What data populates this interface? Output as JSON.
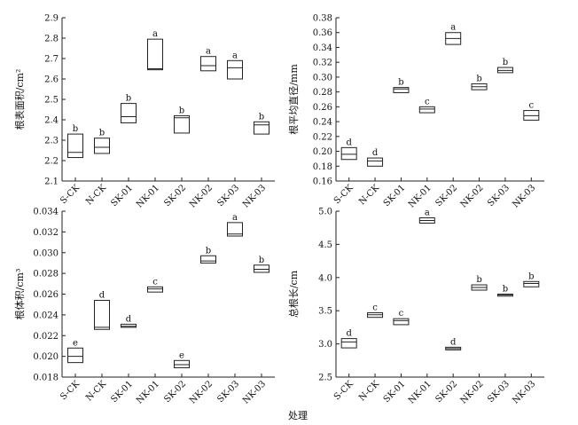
{
  "xaxis_title": "处理",
  "chart_data": [
    {
      "type": "box",
      "id": "root-surface-area",
      "ylabel": "根表面积/cm²",
      "ylim": [
        2.1,
        2.9
      ],
      "yticks": [
        "2.1",
        "2.2",
        "2.3",
        "2.4",
        "2.5",
        "2.6",
        "2.7",
        "2.8",
        "2.9"
      ],
      "categories": [
        "S-CK",
        "N-CK",
        "SK-01",
        "NK-01",
        "SK-02",
        "NK-02",
        "SK-03",
        "NK-03"
      ],
      "series": [
        {
          "low": 2.215,
          "median": 2.24,
          "high": 2.33,
          "label": "b"
        },
        {
          "low": 2.235,
          "median": 2.265,
          "high": 2.31,
          "label": "b"
        },
        {
          "low": 2.385,
          "median": 2.415,
          "high": 2.48,
          "label": "b"
        },
        {
          "low": 2.645,
          "median": 2.65,
          "high": 2.795,
          "label": "a"
        },
        {
          "low": 2.335,
          "median": 2.41,
          "high": 2.42,
          "label": "b"
        },
        {
          "low": 2.64,
          "median": 2.665,
          "high": 2.71,
          "label": "a"
        },
        {
          "low": 2.6,
          "median": 2.655,
          "high": 2.69,
          "label": "a"
        },
        {
          "low": 2.33,
          "median": 2.375,
          "high": 2.39,
          "label": "b"
        }
      ]
    },
    {
      "type": "box",
      "id": "root-avg-diameter",
      "ylabel": "根平均直径/mm",
      "ylim": [
        0.16,
        0.38
      ],
      "yticks": [
        "0.16",
        "0.18",
        "0.20",
        "0.22",
        "0.24",
        "0.26",
        "0.28",
        "0.30",
        "0.32",
        "0.34",
        "0.36",
        "0.38"
      ],
      "categories": [
        "S-CK",
        "N-CK",
        "SK-01",
        "NK-01",
        "SK-02",
        "NK-02",
        "SK-03",
        "NK-03"
      ],
      "series": [
        {
          "low": 0.189,
          "median": 0.196,
          "high": 0.205,
          "label": "d"
        },
        {
          "low": 0.18,
          "median": 0.187,
          "high": 0.191,
          "label": "d"
        },
        {
          "low": 0.279,
          "median": 0.284,
          "high": 0.286,
          "label": "b"
        },
        {
          "low": 0.252,
          "median": 0.257,
          "high": 0.26,
          "label": "c"
        },
        {
          "low": 0.344,
          "median": 0.352,
          "high": 0.36,
          "label": "a"
        },
        {
          "low": 0.283,
          "median": 0.287,
          "high": 0.291,
          "label": "b"
        },
        {
          "low": 0.306,
          "median": 0.309,
          "high": 0.313,
          "label": "b"
        },
        {
          "low": 0.242,
          "median": 0.248,
          "high": 0.255,
          "label": "c"
        }
      ]
    },
    {
      "type": "box",
      "id": "root-volume",
      "ylabel": "根体积/cm³",
      "ylim": [
        0.018,
        0.034
      ],
      "yticks": [
        "0.018",
        "0.020",
        "0.022",
        "0.024",
        "0.026",
        "0.028",
        "0.030",
        "0.032",
        "0.034"
      ],
      "categories": [
        "S-CK",
        "N-CK",
        "SK-01",
        "NK-01",
        "SK-02",
        "NK-02",
        "SK-03",
        "NK-03"
      ],
      "series": [
        {
          "low": 0.0194,
          "median": 0.02,
          "high": 0.0208,
          "label": "e"
        },
        {
          "low": 0.0226,
          "median": 0.0228,
          "high": 0.0254,
          "label": "d"
        },
        {
          "low": 0.0228,
          "median": 0.0229,
          "high": 0.0231,
          "label": "d"
        },
        {
          "low": 0.0262,
          "median": 0.0265,
          "high": 0.0267,
          "label": "c"
        },
        {
          "low": 0.0189,
          "median": 0.0192,
          "high": 0.0196,
          "label": "e"
        },
        {
          "low": 0.029,
          "median": 0.0292,
          "high": 0.0297,
          "label": "b"
        },
        {
          "low": 0.0316,
          "median": 0.0318,
          "high": 0.0329,
          "label": "a"
        },
        {
          "low": 0.0281,
          "median": 0.0284,
          "high": 0.0288,
          "label": "b"
        }
      ]
    },
    {
      "type": "box",
      "id": "total-root-length",
      "ylabel": "总根长/cm",
      "ylim": [
        2.5,
        5.0
      ],
      "yticks": [
        "2.5",
        "3.0",
        "3.5",
        "4.0",
        "4.5",
        "5.0"
      ],
      "categories": [
        "S-CK",
        "N-CK",
        "SK-01",
        "NK-01",
        "SK-02",
        "NK-02",
        "SK-03",
        "NK-03"
      ],
      "series": [
        {
          "low": 2.94,
          "median": 3.03,
          "high": 3.08,
          "label": "d"
        },
        {
          "low": 3.4,
          "median": 3.44,
          "high": 3.47,
          "label": "c"
        },
        {
          "low": 3.29,
          "median": 3.35,
          "high": 3.38,
          "label": "c"
        },
        {
          "low": 4.82,
          "median": 4.86,
          "high": 4.9,
          "label": "a"
        },
        {
          "low": 2.91,
          "median": 2.93,
          "high": 2.95,
          "label": "d"
        },
        {
          "low": 3.81,
          "median": 3.85,
          "high": 3.89,
          "label": "b"
        },
        {
          "low": 3.72,
          "median": 3.74,
          "high": 3.75,
          "label": "b"
        },
        {
          "low": 3.86,
          "median": 3.91,
          "high": 3.94,
          "label": "b"
        }
      ]
    }
  ]
}
